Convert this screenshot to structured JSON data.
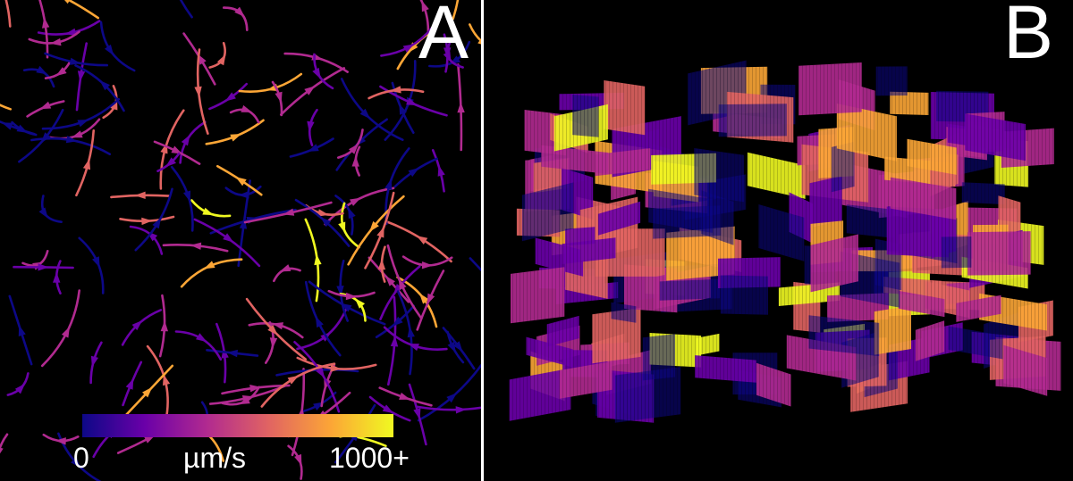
{
  "panels": {
    "a": {
      "label": "A"
    },
    "b": {
      "label": "B"
    }
  },
  "colorbar": {
    "min_label": "0",
    "unit_label": "µm/s",
    "max_label": "1000+",
    "colormap": "plasma",
    "colors": [
      "#0d0887",
      "#6a00a8",
      "#b12a90",
      "#e16462",
      "#fca636",
      "#f0f921"
    ]
  },
  "colors": {
    "background": "#000000",
    "divider": "#ffffff"
  }
}
